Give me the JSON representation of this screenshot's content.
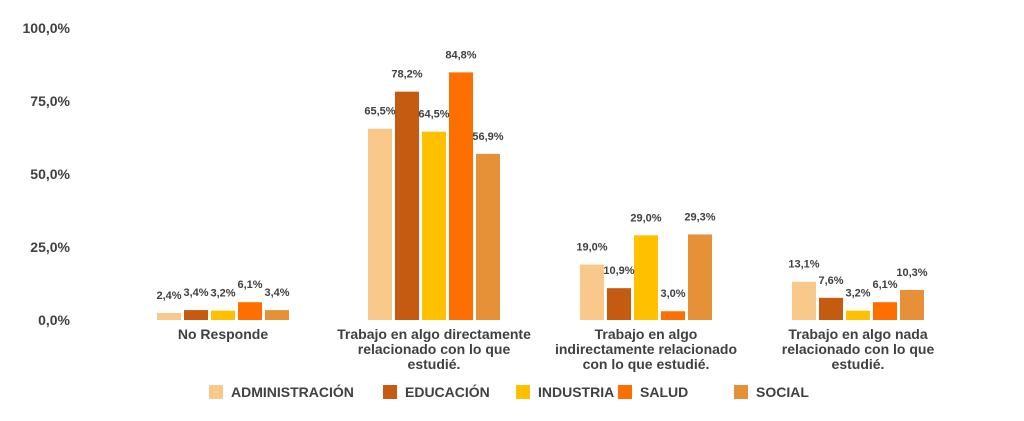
{
  "chart_data": {
    "type": "bar",
    "categories": [
      [
        "No Responde"
      ],
      [
        "Trabajo en algo directamente",
        "relacionado con lo que",
        "estudié."
      ],
      [
        "Trabajo en algo",
        "indirectamente relacionado",
        "con lo que estudié."
      ],
      [
        "Trabajo en algo nada",
        "relacionado con lo que",
        "estudié."
      ]
    ],
    "series": [
      {
        "name": "ADMINISTRACIÓN",
        "color": "#F8C98A",
        "values": [
          2.4,
          65.5,
          19.0,
          13.1
        ],
        "labels": [
          "2,4%",
          "65,5%",
          "19,0%",
          "13,1%"
        ]
      },
      {
        "name": "EDUCACIÓN",
        "color": "#C55A11",
        "values": [
          3.4,
          78.2,
          10.9,
          7.6
        ],
        "labels": [
          "3,4%",
          "78,2%",
          "10,9%",
          "7,6%"
        ]
      },
      {
        "name": "INDUSTRIA",
        "color": "#FFC000",
        "values": [
          3.2,
          64.5,
          29.0,
          3.2
        ],
        "labels": [
          "3,2%",
          "64,5%",
          "29,0%",
          "3,2%"
        ]
      },
      {
        "name": "SALUD",
        "color": "#FF6F00",
        "values": [
          6.1,
          84.8,
          3.0,
          6.1
        ],
        "labels": [
          "6,1%",
          "84,8%",
          "3,0%",
          "6,1%"
        ]
      },
      {
        "name": "SOCIAL",
        "color": "#E69138",
        "values": [
          3.4,
          56.9,
          29.3,
          10.3
        ],
        "labels": [
          "3,4%",
          "56,9%",
          "29,3%",
          "10,3%"
        ]
      }
    ],
    "yticks": [
      0,
      25,
      50,
      75,
      100
    ],
    "ytick_labels": [
      "0,0%",
      "25,0%",
      "50,0%",
      "75,0%",
      "100,0%"
    ],
    "ylim": [
      0,
      100
    ],
    "grid": false,
    "legend_position": "bottom",
    "title": "",
    "xlabel": "",
    "ylabel": ""
  }
}
